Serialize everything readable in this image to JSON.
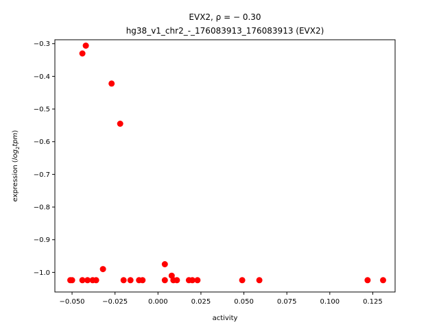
{
  "chart_data": {
    "type": "scatter",
    "title_line1": "EVX2, ρ = − 0.30",
    "title_line2": "hg38_v1_chr2_-_176083913_176083913 (EVX2)",
    "xlabel": "activity",
    "ylabel_prefix": "expression (",
    "ylabel_math": "log",
    "ylabel_sub": "2",
    "ylabel_math2": "tpm",
    "ylabel_suffix": ")",
    "xlim": [
      -0.06,
      0.138
    ],
    "ylim": [
      -1.06,
      -0.288
    ],
    "xticks": [
      -0.05,
      -0.025,
      0.0,
      0.025,
      0.05,
      0.075,
      0.1,
      0.125
    ],
    "xtick_labels": [
      "−0.050",
      "−0.025",
      "0.000",
      "0.025",
      "0.050",
      "0.075",
      "0.100",
      "0.125"
    ],
    "yticks": [
      -1.0,
      -0.9,
      -0.8,
      -0.7,
      -0.6,
      -0.5,
      -0.4,
      -0.3
    ],
    "ytick_labels": [
      "−1.0",
      "−0.9",
      "−0.8",
      "−0.7",
      "−0.6",
      "−0.5",
      "−0.4",
      "−0.3"
    ],
    "marker_color": "#ff0000",
    "grid": false,
    "points": [
      {
        "x": -0.051,
        "y": -1.024
      },
      {
        "x": -0.05,
        "y": -1.024
      },
      {
        "x": -0.044,
        "y": -1.024
      },
      {
        "x": -0.041,
        "y": -1.024
      },
      {
        "x": -0.038,
        "y": -1.024
      },
      {
        "x": -0.036,
        "y": -1.024
      },
      {
        "x": -0.044,
        "y": -0.33
      },
      {
        "x": -0.042,
        "y": -0.306
      },
      {
        "x": -0.027,
        "y": -0.422
      },
      {
        "x": -0.022,
        "y": -0.545
      },
      {
        "x": -0.032,
        "y": -0.99
      },
      {
        "x": -0.02,
        "y": -1.024
      },
      {
        "x": -0.016,
        "y": -1.024
      },
      {
        "x": -0.011,
        "y": -1.024
      },
      {
        "x": -0.009,
        "y": -1.024
      },
      {
        "x": 0.004,
        "y": -0.975
      },
      {
        "x": 0.004,
        "y": -1.024
      },
      {
        "x": 0.008,
        "y": -1.01
      },
      {
        "x": 0.009,
        "y": -1.024
      },
      {
        "x": 0.011,
        "y": -1.024
      },
      {
        "x": 0.018,
        "y": -1.024
      },
      {
        "x": 0.02,
        "y": -1.024
      },
      {
        "x": 0.023,
        "y": -1.024
      },
      {
        "x": 0.049,
        "y": -1.024
      },
      {
        "x": 0.059,
        "y": -1.024
      },
      {
        "x": 0.122,
        "y": -1.024
      },
      {
        "x": 0.131,
        "y": -1.024
      }
    ]
  }
}
